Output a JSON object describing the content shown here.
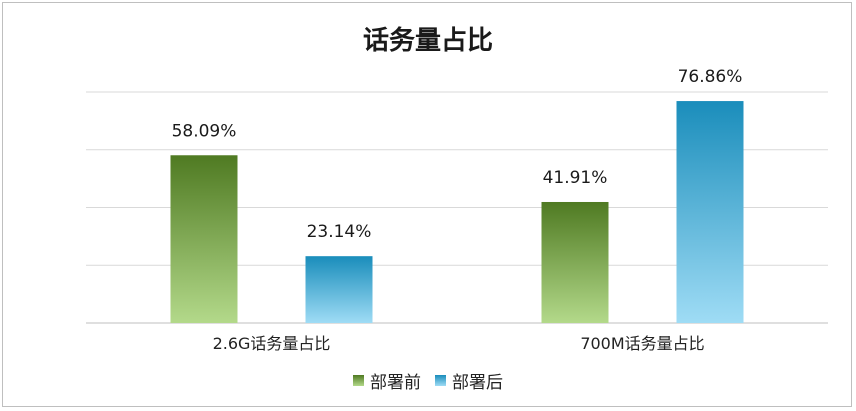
{
  "chart_data": {
    "type": "bar",
    "title": "话务量占比",
    "categories": [
      "2.6G话务量占比",
      "700M话务量占比"
    ],
    "series": [
      {
        "name": "部署前",
        "values": [
          58.09,
          41.91
        ],
        "labels": [
          "58.09%",
          "41.91%"
        ],
        "color_top": "#4f7a22",
        "color_bottom": "#b3d98a"
      },
      {
        "name": "部署后",
        "values": [
          23.14,
          76.86
        ],
        "labels": [
          "23.14%",
          "76.86%"
        ],
        "color_top": "#1a8dbb",
        "color_bottom": "#9fdcf5"
      }
    ],
    "ylim": [
      0,
      80
    ],
    "grid": true,
    "legend_position": "bottom"
  }
}
